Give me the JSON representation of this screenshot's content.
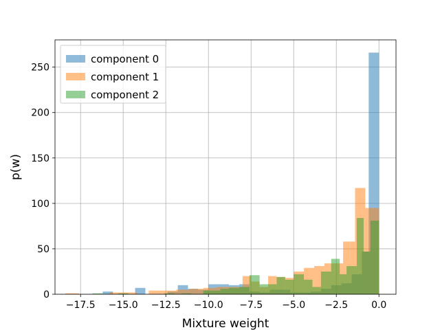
{
  "chart_data": {
    "type": "histogram",
    "title": "",
    "xlabel": "Mixture weight",
    "ylabel": "p(w)",
    "xlim": [
      -19.0,
      1.0
    ],
    "ylim": [
      0,
      280
    ],
    "xticks": [
      -17.5,
      -15.0,
      -12.5,
      -10.0,
      -7.5,
      -5.0,
      -2.5,
      0.0
    ],
    "xtick_labels": [
      "−17.5",
      "−15.0",
      "−12.5",
      "−10.0",
      "−7.5",
      "−5.0",
      "−2.5",
      "0.0"
    ],
    "yticks": [
      0,
      50,
      100,
      150,
      200,
      250
    ],
    "ytick_labels": [
      "0",
      "50",
      "100",
      "150",
      "200",
      "250"
    ],
    "grid": true,
    "legend_position": "top-left",
    "series": [
      {
        "name": "component 0",
        "color": "#1f77b4",
        "alpha": 0.5,
        "bins": [
          [
            -16.2,
            -15.6,
            3
          ],
          [
            -14.3,
            -13.7,
            7
          ],
          [
            -12.4,
            -11.8,
            3
          ],
          [
            -11.8,
            -11.2,
            10
          ],
          [
            -11.2,
            -10.6,
            6
          ],
          [
            -10.6,
            -10.0,
            5
          ],
          [
            -10.0,
            -9.4,
            11
          ],
          [
            -9.4,
            -8.8,
            11
          ],
          [
            -8.8,
            -8.2,
            10
          ],
          [
            -8.2,
            -7.6,
            11
          ],
          [
            -7.6,
            -7.0,
            3
          ],
          [
            -7.0,
            -6.4,
            2
          ],
          [
            -6.4,
            -5.8,
            5
          ],
          [
            -5.8,
            -5.2,
            5
          ],
          [
            -5.2,
            -4.6,
            2
          ],
          [
            -4.6,
            -4.0,
            2
          ],
          [
            -4.0,
            -3.4,
            3
          ],
          [
            -3.4,
            -2.8,
            6
          ],
          [
            -2.8,
            -2.2,
            10
          ],
          [
            -2.2,
            -1.6,
            12
          ],
          [
            -1.6,
            -1.0,
            22
          ],
          [
            -1.0,
            -0.6,
            47
          ],
          [
            -0.6,
            0.0,
            266
          ]
        ]
      },
      {
        "name": "component 1",
        "color": "#ff7f0e",
        "alpha": 0.5,
        "bins": [
          [
            -18.4,
            -17.6,
            1
          ],
          [
            -15.8,
            -15.0,
            2
          ],
          [
            -15.0,
            -14.2,
            2
          ],
          [
            -13.5,
            -12.7,
            4
          ],
          [
            -12.7,
            -11.9,
            4
          ],
          [
            -11.9,
            -11.1,
            5
          ],
          [
            -11.1,
            -10.3,
            6
          ],
          [
            -10.3,
            -9.5,
            7
          ],
          [
            -9.5,
            -8.7,
            8
          ],
          [
            -8.7,
            -8.0,
            8
          ],
          [
            -8.0,
            -7.5,
            20
          ],
          [
            -7.5,
            -7.0,
            14
          ],
          [
            -7.0,
            -6.5,
            8
          ],
          [
            -6.5,
            -6.0,
            20
          ],
          [
            -6.0,
            -5.5,
            19
          ],
          [
            -5.5,
            -5.0,
            18
          ],
          [
            -5.0,
            -4.4,
            25
          ],
          [
            -4.4,
            -3.8,
            29
          ],
          [
            -3.8,
            -3.2,
            31
          ],
          [
            -3.2,
            -2.6,
            34
          ],
          [
            -2.6,
            -2.1,
            34
          ],
          [
            -2.1,
            -1.4,
            58
          ],
          [
            -1.4,
            -0.8,
            117
          ],
          [
            -0.8,
            0.0,
            95
          ]
        ]
      },
      {
        "name": "component 2",
        "color": "#2ca02c",
        "alpha": 0.5,
        "bins": [
          [
            -16.8,
            -16.2,
            1
          ],
          [
            -15.3,
            -14.7,
            1
          ],
          [
            -12.6,
            -12.0,
            1
          ],
          [
            -11.6,
            -11.0,
            1
          ],
          [
            -10.3,
            -9.8,
            4
          ],
          [
            -9.8,
            -9.3,
            4
          ],
          [
            -9.3,
            -8.8,
            6
          ],
          [
            -8.8,
            -8.2,
            7
          ],
          [
            -8.2,
            -7.6,
            8
          ],
          [
            -7.6,
            -7.0,
            21
          ],
          [
            -7.0,
            -6.5,
            11
          ],
          [
            -6.5,
            -6.0,
            11
          ],
          [
            -6.0,
            -5.5,
            19
          ],
          [
            -5.5,
            -5.0,
            16
          ],
          [
            -5.0,
            -4.4,
            22
          ],
          [
            -4.4,
            -3.9,
            16
          ],
          [
            -3.9,
            -3.4,
            8
          ],
          [
            -3.4,
            -2.8,
            25
          ],
          [
            -2.8,
            -2.3,
            39
          ],
          [
            -2.3,
            -1.9,
            22
          ],
          [
            -1.9,
            -1.3,
            31
          ],
          [
            -1.3,
            -0.9,
            84
          ],
          [
            -0.9,
            -0.5,
            47
          ],
          [
            -0.5,
            0.0,
            81
          ]
        ]
      }
    ]
  }
}
